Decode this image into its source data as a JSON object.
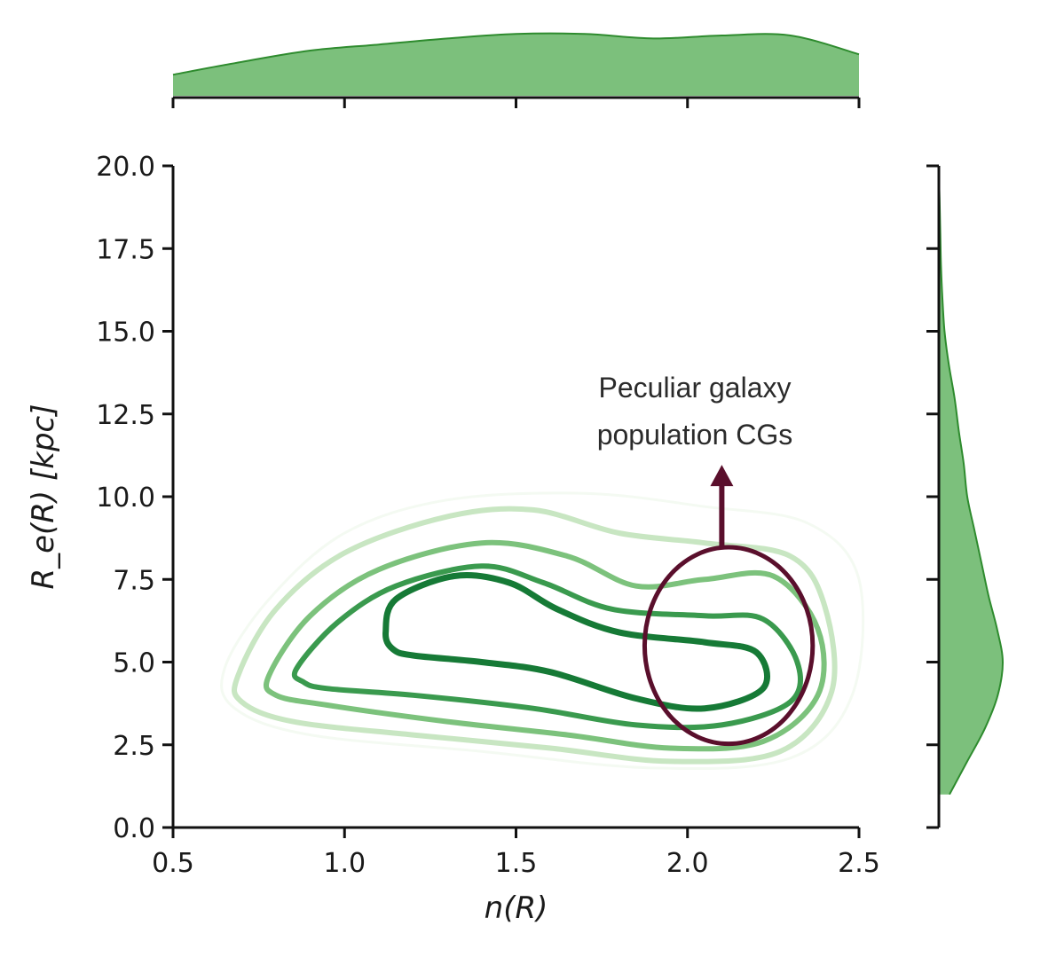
{
  "chart_data": {
    "type": "contour",
    "title": "",
    "xlabel": "n(R)",
    "ylabel": "R_e(R) [kpc]",
    "xlim": [
      0.5,
      2.5
    ],
    "ylim": [
      0.0,
      20.0
    ],
    "xticks": [
      "0.5",
      "1.0",
      "1.5",
      "2.0",
      "2.5"
    ],
    "yticks": [
      "0.0",
      "2.5",
      "5.0",
      "7.5",
      "10.0",
      "12.5",
      "15.0",
      "17.5",
      "20.0"
    ],
    "grid": false,
    "colors": {
      "marginal_fill": "#7cc07c",
      "marginal_line": "#2e8b2e",
      "annotation": "#5a0f2c"
    },
    "contour_levels": [
      {
        "level": 1,
        "color": "#f4faf2",
        "width": 3,
        "points": [
          [
            0.65,
            4.8
          ],
          [
            0.78,
            6.9
          ],
          [
            1.0,
            8.9
          ],
          [
            1.3,
            9.9
          ],
          [
            1.7,
            10.1
          ],
          [
            2.05,
            9.7
          ],
          [
            2.35,
            9.2
          ],
          [
            2.5,
            7.5
          ],
          [
            2.48,
            4.0
          ],
          [
            2.3,
            2.1
          ],
          [
            1.9,
            1.8
          ],
          [
            1.4,
            2.3
          ],
          [
            0.9,
            2.8
          ],
          [
            0.68,
            3.6
          ]
        ]
      },
      {
        "level": 2,
        "color": "#c8e6c2",
        "width": 6,
        "points": [
          [
            0.69,
            4.6
          ],
          [
            0.8,
            6.6
          ],
          [
            1.0,
            8.3
          ],
          [
            1.3,
            9.4
          ],
          [
            1.55,
            9.6
          ],
          [
            1.8,
            8.9
          ],
          [
            2.05,
            8.6
          ],
          [
            2.3,
            8.2
          ],
          [
            2.4,
            6.7
          ],
          [
            2.42,
            4.1
          ],
          [
            2.27,
            2.3
          ],
          [
            1.95,
            2.0
          ],
          [
            1.6,
            2.4
          ],
          [
            1.2,
            2.8
          ],
          [
            0.85,
            3.2
          ],
          [
            0.7,
            3.8
          ]
        ]
      },
      {
        "level": 3,
        "color": "#7cc27c",
        "width": 6,
        "points": [
          [
            0.78,
            4.6
          ],
          [
            0.9,
            6.4
          ],
          [
            1.1,
            7.8
          ],
          [
            1.4,
            8.6
          ],
          [
            1.65,
            8.2
          ],
          [
            1.85,
            7.3
          ],
          [
            2.05,
            7.5
          ],
          [
            2.25,
            7.6
          ],
          [
            2.38,
            6.0
          ],
          [
            2.38,
            4.0
          ],
          [
            2.22,
            2.6
          ],
          [
            1.95,
            2.4
          ],
          [
            1.65,
            2.8
          ],
          [
            1.3,
            3.2
          ],
          [
            0.95,
            3.7
          ],
          [
            0.8,
            4.0
          ]
        ]
      },
      {
        "level": 4,
        "color": "#3a9a4e",
        "width": 6,
        "points": [
          [
            0.86,
            4.8
          ],
          [
            0.98,
            6.2
          ],
          [
            1.15,
            7.3
          ],
          [
            1.4,
            7.9
          ],
          [
            1.58,
            7.4
          ],
          [
            1.78,
            6.6
          ],
          [
            2.05,
            6.4
          ],
          [
            2.22,
            6.3
          ],
          [
            2.32,
            5.0
          ],
          [
            2.3,
            3.8
          ],
          [
            2.1,
            3.1
          ],
          [
            1.85,
            3.1
          ],
          [
            1.55,
            3.6
          ],
          [
            1.2,
            4.0
          ],
          [
            0.95,
            4.2
          ],
          [
            0.88,
            4.4
          ]
        ]
      },
      {
        "level": 5,
        "color": "#167a36",
        "width": 7,
        "points": [
          [
            1.12,
            5.9
          ],
          [
            1.15,
            6.9
          ],
          [
            1.32,
            7.6
          ],
          [
            1.48,
            7.4
          ],
          [
            1.62,
            6.6
          ],
          [
            1.8,
            5.9
          ],
          [
            2.05,
            5.6
          ],
          [
            2.2,
            5.3
          ],
          [
            2.22,
            4.2
          ],
          [
            2.05,
            3.6
          ],
          [
            1.85,
            3.9
          ],
          [
            1.6,
            4.7
          ],
          [
            1.4,
            5.0
          ],
          [
            1.2,
            5.2
          ],
          [
            1.14,
            5.4
          ]
        ]
      }
    ],
    "marginal_x": {
      "x": [
        0.5,
        0.7,
        0.9,
        1.1,
        1.3,
        1.5,
        1.7,
        1.9,
        2.1,
        2.3,
        2.5
      ],
      "density": [
        0.28,
        0.45,
        0.6,
        0.68,
        0.76,
        0.82,
        0.82,
        0.76,
        0.8,
        0.8,
        0.55
      ]
    },
    "marginal_y": {
      "y": [
        1.0,
        2.0,
        3.0,
        4.0,
        5.0,
        6.0,
        7.0,
        8.0,
        9.0,
        10.0,
        11.0,
        12.0,
        13.0,
        14.0,
        15.0,
        16.0,
        17.0,
        18.0,
        19.0,
        19.8
      ],
      "density": [
        0.15,
        0.4,
        0.65,
        0.83,
        0.9,
        0.82,
        0.7,
        0.6,
        0.5,
        0.4,
        0.35,
        0.28,
        0.22,
        0.14,
        0.08,
        0.05,
        0.03,
        0.02,
        0.01,
        0.0
      ]
    },
    "annotation": {
      "text_line1": "Peculiar galaxy",
      "text_line2": "population CGs",
      "circle_center": [
        2.12,
        5.5
      ],
      "circle_radius_x": 0.245,
      "arrow_to": [
        2.1,
        10.8
      ]
    }
  }
}
